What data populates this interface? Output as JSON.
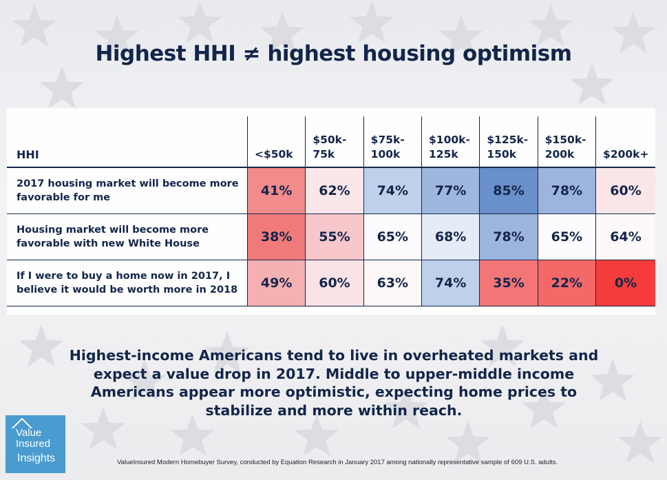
{
  "title": "Highest HHI ≠ highest housing optimism",
  "chart_data": {
    "type": "heatmap",
    "row_header": "HHI",
    "columns": [
      "<$50k",
      "$50k-75k",
      "$75k-100k",
      "$100k-125k",
      "$125k-150k",
      "$150k-200k",
      "$200k+"
    ],
    "rows": [
      {
        "label": "2017 housing market will become more favorable for me",
        "values": [
          "41%",
          "62%",
          "74%",
          "77%",
          "85%",
          "78%",
          "60%"
        ],
        "colors": [
          "#f28b8b",
          "#fbe7ea",
          "#bfd0ea",
          "#9fb7df",
          "#6a90cb",
          "#9db5de",
          "#fae6e9"
        ]
      },
      {
        "label": "Housing market will become more favorable with new White House",
        "values": [
          "38%",
          "55%",
          "65%",
          "68%",
          "78%",
          "65%",
          "64%"
        ],
        "colors": [
          "#f07a7a",
          "#f7c7cb",
          "#fcfbfd",
          "#e5ecf7",
          "#9db5de",
          "#fcfbfd",
          "#fdf9fb"
        ]
      },
      {
        "label": "If I were to buy a home now in 2017, I believe it would be worth more in 2018",
        "values": [
          "49%",
          "60%",
          "63%",
          "74%",
          "35%",
          "22%",
          "0%"
        ],
        "colors": [
          "#f5b0b2",
          "#fae3e6",
          "#fdf7f8",
          "#bfd0ea",
          "#f27676",
          "#f46868",
          "#f63c3a"
        ]
      }
    ]
  },
  "summary": "Highest-income Americans tend to live in overheated markets and expect a value drop in 2017. Middle to upper-middle income Americans appear more optimistic, expecting home prices to stabilize and more within reach.",
  "logo": {
    "line1": "Value",
    "line2": "Insured",
    "line3": "Insights",
    "color": "#4a9bd0"
  },
  "footnote": "ValueInsured Modern Homebuyer Survey, conducted by Equation Research in January 2017 among nationally representative sample of 609 U.S. adults."
}
